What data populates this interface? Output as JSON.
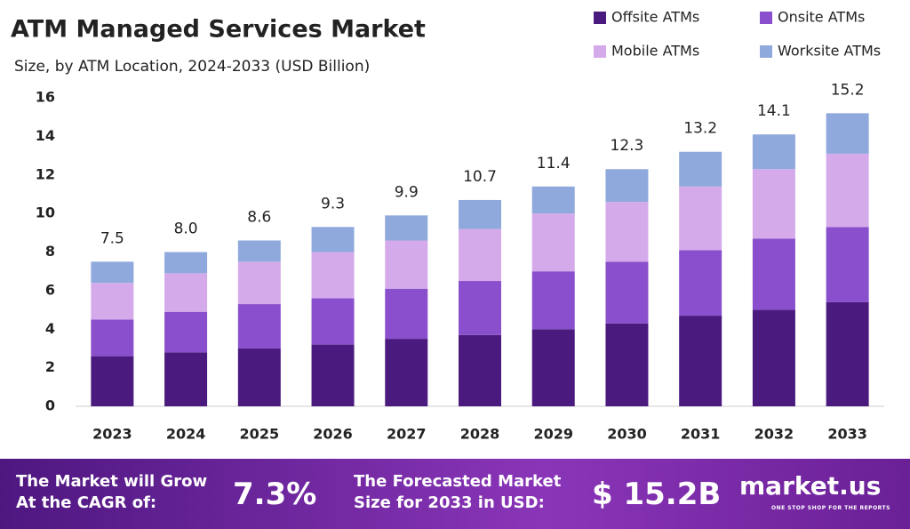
{
  "chart_data": {
    "type": "stacked-bar",
    "title": "ATM Managed Services Market",
    "subtitle": "Size, by ATM Location, 2024-2033 (USD Billion)",
    "categories": [
      "2023",
      "2024",
      "2025",
      "2026",
      "2027",
      "2028",
      "2029",
      "2030",
      "2031",
      "2032",
      "2033"
    ],
    "series": [
      {
        "name": "Offsite ATMs",
        "color": "#4a1a7e",
        "values": [
          2.6,
          2.8,
          3.0,
          3.2,
          3.5,
          3.7,
          4.0,
          4.3,
          4.7,
          5.0,
          5.4
        ]
      },
      {
        "name": "Onsite ATMs",
        "color": "#8a4fcc",
        "values": [
          1.9,
          2.1,
          2.3,
          2.4,
          2.6,
          2.8,
          3.0,
          3.2,
          3.4,
          3.7,
          3.9
        ]
      },
      {
        "name": "Mobile ATMs",
        "color": "#d4aaeb",
        "values": [
          1.9,
          2.0,
          2.2,
          2.4,
          2.5,
          2.7,
          3.0,
          3.1,
          3.3,
          3.6,
          3.8
        ]
      },
      {
        "name": "Worksite ATMs",
        "color": "#8fa9dd",
        "values": [
          1.1,
          1.1,
          1.1,
          1.3,
          1.3,
          1.5,
          1.4,
          1.7,
          1.8,
          1.8,
          2.1
        ]
      }
    ],
    "totals": {
      "values": [
        7.5,
        8,
        8.6,
        9.3,
        9.9,
        10.7,
        11.4,
        12.3,
        13.2,
        14.1,
        15.2
      ],
      "value_labels": [
        "7.5",
        "8.0",
        "8.6",
        "9.3",
        "9.9",
        "10.7",
        "11.4",
        "12.3",
        "13.2",
        "14.1",
        "15.2"
      ]
    },
    "ylim": [
      0,
      16
    ],
    "yticks": [
      0,
      2,
      4,
      6,
      8,
      10,
      12,
      14,
      16
    ],
    "grid": false,
    "legend": "top-right"
  },
  "footer": {
    "cagr_text": [
      "The Market will Grow",
      "At the CAGR of:"
    ],
    "cagr_value": "7.3%",
    "forecast_text": [
      "The Forecasted Market",
      "Size for 2033 in USD:"
    ],
    "forecast_value": "$ 15.2B",
    "brand": "market.us",
    "tagline": "ONE STOP SHOP FOR THE REPORTS"
  }
}
